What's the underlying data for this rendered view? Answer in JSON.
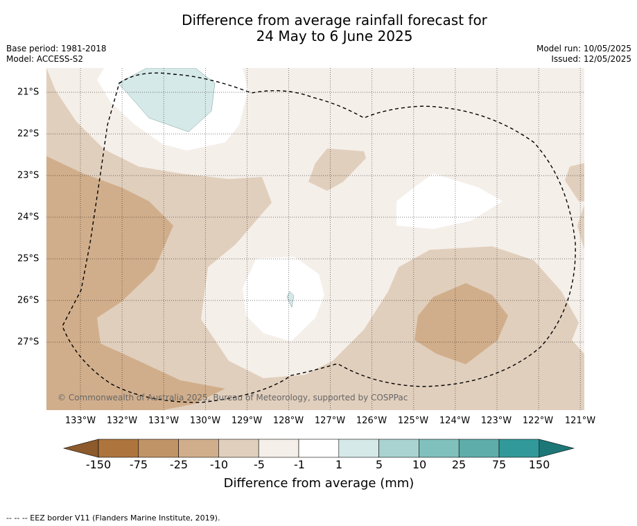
{
  "title_line1": "Difference from average rainfall forecast for",
  "title_line2": "24 May to 6 June 2025",
  "meta_left": {
    "base_period": "Base period: 1981-2018",
    "model": "Model: ACCESS-S2"
  },
  "meta_right": {
    "model_run": "Model run: 10/05/2025",
    "issued": "Issued: 12/05/2025"
  },
  "copyright": "© Commonwealth of Australia 2025, Bureau of Meteorology, supported by COSPPac",
  "lat_labels": [
    "21°S",
    "22°S",
    "23°S",
    "24°S",
    "25°S",
    "26°S",
    "27°S"
  ],
  "lon_labels": [
    "133°W",
    "132°W",
    "131°W",
    "130°W",
    "129°W",
    "128°W",
    "127°W",
    "126°W",
    "125°W",
    "124°W",
    "123°W",
    "122°W",
    "121°W"
  ],
  "colorbar": {
    "ticks": [
      "-150",
      "-75",
      "-25",
      "-10",
      "-5",
      "-1",
      "1",
      "5",
      "10",
      "25",
      "75",
      "150"
    ],
    "title": "Difference from average (mm)",
    "colors": [
      "#8c5a2b",
      "#ad753d",
      "#c19467",
      "#d1ae8b",
      "#e1cfbd",
      "#f5efe9",
      "#ffffff",
      "#d5e9e8",
      "#a8d3d1",
      "#80c0bd",
      "#5eadaa",
      "#32999a",
      "#1d7777"
    ]
  },
  "footnote": "--  --  -- EEZ border V11 (Flanders Marine Institute, 2019)."
}
